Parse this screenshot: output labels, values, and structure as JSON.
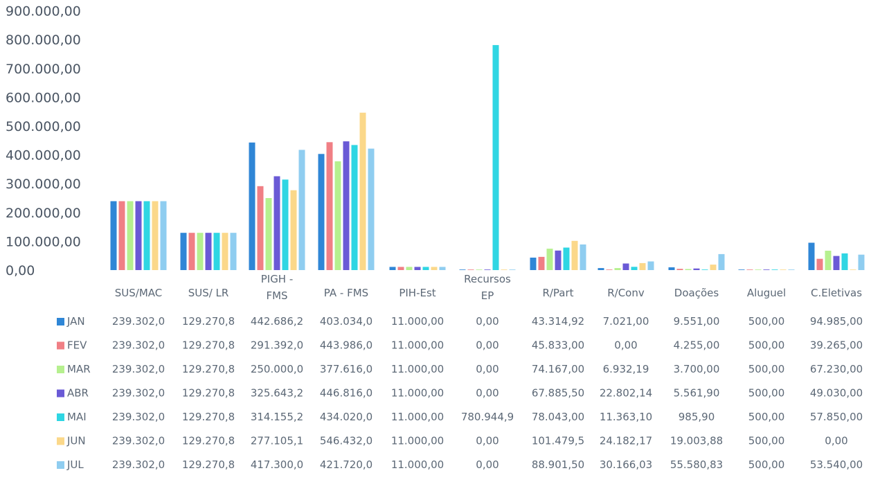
{
  "chart_data": {
    "type": "bar",
    "ylim": [
      0,
      900000
    ],
    "yticks": [
      "0,00",
      "100.000,00",
      "200.000,00",
      "300.000,00",
      "400.000,00",
      "500.000,00",
      "600.000,00",
      "700.000,00",
      "800.000,00",
      "900.000,00"
    ],
    "categories": [
      [
        "SUS/MAC"
      ],
      [
        "SUS/ LR"
      ],
      [
        "PIGH -",
        "FMS"
      ],
      [
        "PA - FMS"
      ],
      [
        "PIH-Est"
      ],
      [
        "Recursos",
        "EP"
      ],
      [
        "R/Part"
      ],
      [
        "R/Conv"
      ],
      [
        "Doações"
      ],
      [
        "Aluguel"
      ],
      [
        "C.Eletivas"
      ]
    ],
    "legend_position": "table-left",
    "series": [
      {
        "name": "JAN",
        "color": "#2f86d6",
        "values": [
          239302.0,
          129270.8,
          442686.2,
          403034.0,
          11000.0,
          0.0,
          43314.92,
          7021.0,
          9551.0,
          500.0,
          94985.0
        ],
        "labels": [
          "239.302,0",
          "129.270,8",
          "442.686,2",
          "403.034,0",
          "11.000,00",
          "0,00",
          "43.314,92",
          "7.021,00",
          "9.551,00",
          "500,00",
          "94.985,00"
        ]
      },
      {
        "name": "FEV",
        "color": "#f07f85",
        "values": [
          239302.0,
          129270.8,
          291392.0,
          443986.0,
          11000.0,
          0.0,
          45833.0,
          0.0,
          4255.0,
          500.0,
          39265.0
        ],
        "labels": [
          "239.302,0",
          "129.270,8",
          "291.392,0",
          "443.986,0",
          "11.000,00",
          "0,00",
          "45.833,00",
          "0,00",
          "4.255,00",
          "500,00",
          "39.265,00"
        ]
      },
      {
        "name": "MAR",
        "color": "#b6f08f",
        "values": [
          239302.0,
          129270.8,
          250000.0,
          377616.0,
          11000.0,
          0.0,
          74167.0,
          6932.19,
          3700.0,
          500.0,
          67230.0
        ],
        "labels": [
          "239.302,0",
          "129.270,8",
          "250.000,0",
          "377.616,0",
          "11.000,00",
          "0,00",
          "74.167,00",
          "6.932,19",
          "3.700,00",
          "500,00",
          "67.230,00"
        ]
      },
      {
        "name": "ABR",
        "color": "#6a5ad6",
        "values": [
          239302.0,
          129270.8,
          325643.2,
          446816.0,
          11000.0,
          0.0,
          67885.5,
          22802.14,
          5561.9,
          500.0,
          49030.0
        ],
        "labels": [
          "239.302,0",
          "129.270,8",
          "325.643,2",
          "446.816,0",
          "11.000,00",
          "0,00",
          "67.885,50",
          "22.802,14",
          "5.561,90",
          "500,00",
          "49.030,00"
        ]
      },
      {
        "name": "MAI",
        "color": "#2fd6e3",
        "values": [
          239302.0,
          129270.8,
          314155.2,
          434020.0,
          11000.0,
          780944.9,
          78043.0,
          11363.1,
          985.9,
          500.0,
          57850.0
        ],
        "labels": [
          "239.302,0",
          "129.270,8",
          "314.155,2",
          "434.020,0",
          "11.000,00",
          "780.944,9",
          "78.043,00",
          "11.363,10",
          "985,90",
          "500,00",
          "57.850,00"
        ]
      },
      {
        "name": "JUN",
        "color": "#fbd88a",
        "values": [
          239302.0,
          129270.8,
          277105.1,
          546432.0,
          11000.0,
          0.0,
          101479.5,
          24182.17,
          19003.88,
          500.0,
          0.0
        ],
        "labels": [
          "239.302,0",
          "129.270,8",
          "277.105,1",
          "546.432,0",
          "11.000,00",
          "0,00",
          "101.479,5",
          "24.182,17",
          "19.003,88",
          "500,00",
          "0,00"
        ]
      },
      {
        "name": "JUL",
        "color": "#8fcdf0",
        "values": [
          239302.0,
          129270.8,
          417300.0,
          421720.0,
          11000.0,
          0.0,
          88901.5,
          30166.03,
          55580.83,
          500.0,
          53540.0
        ],
        "labels": [
          "239.302,0",
          "129.270,8",
          "417.300,0",
          "421.720,0",
          "11.000,00",
          "0,00",
          "88.901,50",
          "30.166,03",
          "55.580,83",
          "500,00",
          "53.540,00"
        ]
      }
    ]
  }
}
